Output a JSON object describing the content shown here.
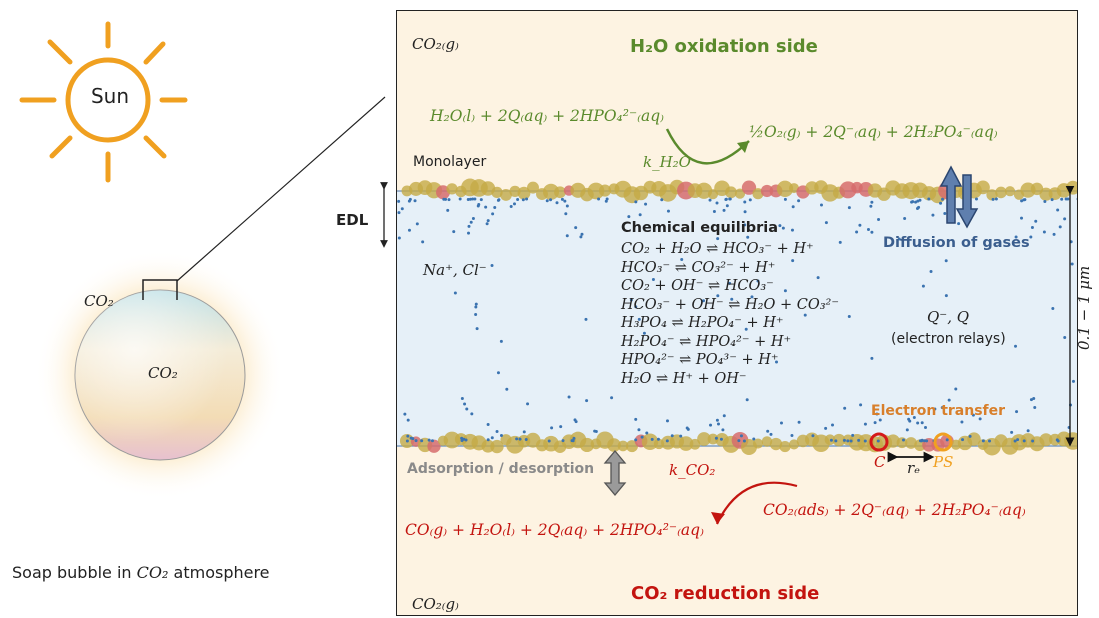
{
  "left": {
    "sun_label": "Sun",
    "bubble_co2_outside": "CO₂",
    "bubble_co2_inside": "CO₂",
    "caption_prefix": "Soap bubble in ",
    "caption_math": "CO₂",
    "caption_suffix": " atmosphere"
  },
  "panel": {
    "co2_gas_top": "CO₂₍g₎",
    "co2_gas_bottom": "CO₂₍g₎",
    "oxidation_title": "H₂O oxidation side",
    "reduction_title": "CO₂ reduction side",
    "oxidation_reactants": "H₂O₍l₎ + 2Q₍aq₎ + 2HPO₄²⁻₍aq₎",
    "oxidation_products": "½O₂₍g₎ + 2Q⁻₍aq₎ + 2H₂PO₄⁻₍aq₎",
    "k_h2o": "k_H₂O",
    "monolayer_label": "Monolayer",
    "edl_label": "EDL",
    "ions_label": "Na⁺, Cl⁻",
    "equilibria_title": "Chemical equilibria",
    "equilibria": [
      "CO₂ + H₂O ⇌ HCO₃⁻ + H⁺",
      "HCO₃⁻ ⇌ CO₃²⁻ + H⁺",
      "CO₂ + OH⁻ ⇌ HCO₃⁻",
      "HCO₃⁻ + OH⁻ ⇌ H₂O + CO₃²⁻",
      "H₃PO₄ ⇌ H₂PO₄⁻ + H⁺",
      "H₂PO₄⁻ ⇌ HPO₄²⁻ + H⁺",
      "HPO₄²⁻ ⇌ PO₄³⁻ + H⁺",
      "H₂O ⇌ H⁺ + OH⁻"
    ],
    "diffusion_label": "Diffusion of gases",
    "relay_species": "Q⁻, Q",
    "relay_label": "(electron relays)",
    "electron_transfer_label": "Electron transfer",
    "catalyst_label": "C",
    "photosensitizer_label": "PS",
    "re_label": "rₑ",
    "adsorption_label": "Adsorption / desorption",
    "k_co2": "k_CO₂",
    "reduction_reactants": "CO₂₍ads₎ + 2Q⁻₍aq₎ + 2H₂PO₄⁻₍aq₎",
    "reduction_products": "CO₍g₎ + H₂O₍l₎ + 2Q₍aq₎ + 2HPO₄²⁻₍aq₎",
    "thickness_label": "0.1 − 1 μm"
  },
  "colors": {
    "oxidation": "#5a8a2c",
    "reduction": "#c3140f",
    "diffusion": "#3b5e8e",
    "electron_transfer": "#d87f2b",
    "sun": "#f0a020"
  }
}
